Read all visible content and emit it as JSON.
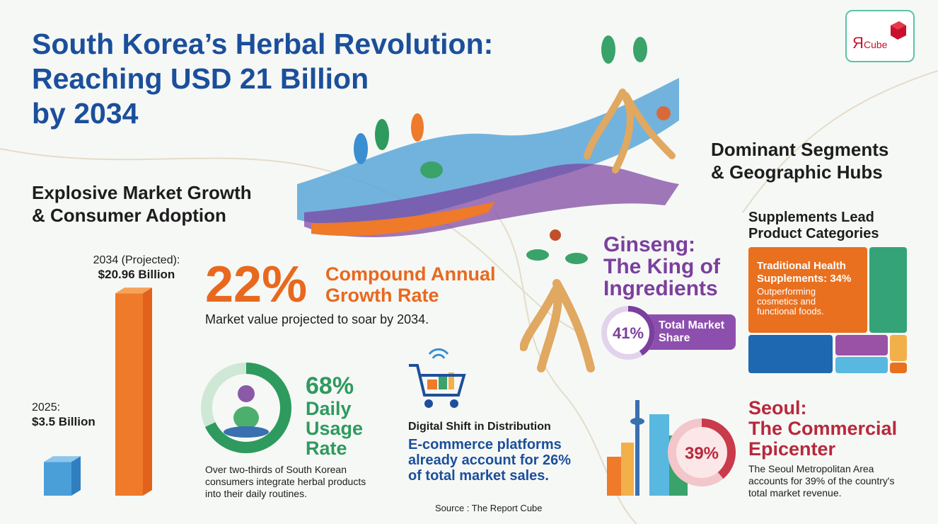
{
  "title": [
    "South Korea’s Herbal Revolution:",
    "Reaching USD 21 Billion",
    "by 2034"
  ],
  "logo": {
    "text": "ЯCube",
    "brand_color": "#c8102e"
  },
  "growth": {
    "heading": [
      "Explosive Market Growth",
      "& Consumer Adoption"
    ],
    "bar_2034_label": "2034 (Projected):",
    "bar_2034_value": "$20.96 Billion",
    "bar_2025_label": "2025:",
    "bar_2025_value": "$3.5 Billion",
    "cagr_value": "22%",
    "cagr_label": [
      "Compound Annual",
      "Growth Rate"
    ],
    "cagr_note": "Market value projected to soar by 2034."
  },
  "usage": {
    "pct": "68%",
    "label": [
      "Daily",
      "Usage",
      "Rate"
    ],
    "fraction": 0.68,
    "note": [
      "Over two-thirds of South Korean",
      "consumers integrate herbal products",
      "into their daily routines."
    ],
    "color": "#2e9a5e"
  },
  "digital": {
    "heading": "Digital Shift in Distribution",
    "text": [
      "E-commerce platforms",
      "already account for 26%",
      "of total market sales."
    ]
  },
  "source": "Source : The Report Cube",
  "ginseng": {
    "title": [
      "Ginseng:",
      "The King of",
      "Ingredients"
    ],
    "pct": "41%",
    "fraction": 0.41,
    "label": [
      "Total Market",
      "Share"
    ],
    "color": "#7b3f9e"
  },
  "segments": {
    "heading": [
      "Dominant Segments",
      "& Geographic Hubs"
    ],
    "sub": [
      "Supplements Lead",
      "Product Categories"
    ],
    "main_title": [
      "Traditional Health",
      "Supplements: 34%"
    ],
    "main_note": [
      "Outperforming",
      "cosmetics and",
      "functional foods."
    ]
  },
  "seoul": {
    "title": [
      "Seoul:",
      "The Commercial",
      "Epicenter"
    ],
    "pct": "39%",
    "fraction": 0.39,
    "note": [
      "The Seoul Metropolitan Area",
      "accounts for 39% of the country's",
      "total market revenue."
    ],
    "color": "#b8283b"
  },
  "chart_data": {
    "type": "bar",
    "categories": [
      "2025",
      "2034 (Projected)"
    ],
    "values": [
      3.5,
      20.96
    ],
    "ylabel": "",
    "xlabel": "",
    "unit": "USD Billion",
    "colors": [
      "#4a9fd8",
      "#ee7a2a"
    ]
  }
}
